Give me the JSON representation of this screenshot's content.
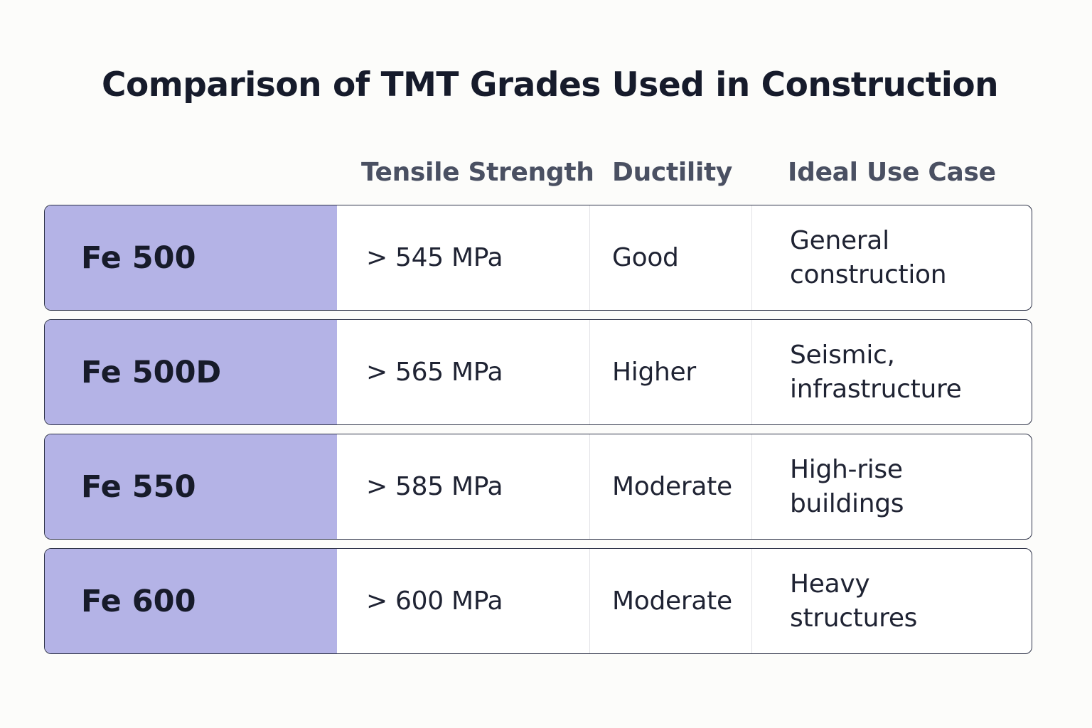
{
  "chart_data": {
    "type": "table",
    "title": "Comparison of TMT Grades Used in Construction",
    "columns": [
      "",
      "Tensile Strength",
      "Ductility",
      "Ideal Use Case"
    ],
    "rows": [
      {
        "grade": "Fe 500",
        "tensile": "> 545 MPa",
        "ductility": "Good",
        "use": [
          "General",
          "construction"
        ]
      },
      {
        "grade": "Fe 500D",
        "tensile": "> 565 MPa",
        "ductility": "Higher",
        "use": [
          "Seismic,",
          "infrastructure"
        ]
      },
      {
        "grade": "Fe 550",
        "tensile": "> 585 MPa",
        "ductility": "Moderate",
        "use": [
          "High-rise",
          "buildings"
        ]
      },
      {
        "grade": "Fe 600",
        "tensile": "> 600 MPa",
        "ductility": "Moderate",
        "use": [
          "Heavy",
          "structures"
        ]
      }
    ]
  },
  "colors": {
    "grade_fill": "#b4b3e6",
    "border": "#2e3348",
    "header_text": "#4a5062",
    "background": "#fcfcfa"
  }
}
